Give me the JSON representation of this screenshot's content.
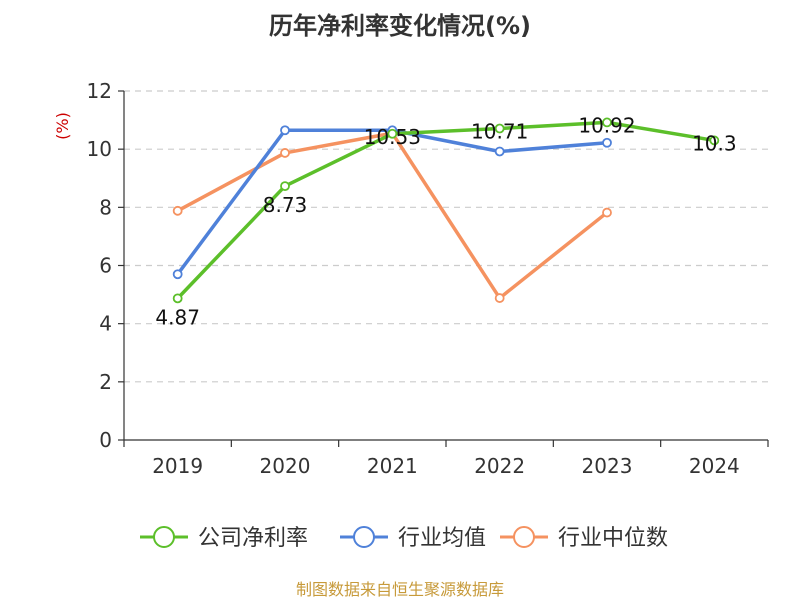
{
  "chart_data": {
    "type": "line",
    "title": "历年净利率变化情况(%)",
    "ylabel": "(%)",
    "xlabel": "",
    "ylim": [
      0,
      12
    ],
    "yticks": [
      0,
      2,
      4,
      6,
      8,
      10,
      12
    ],
    "categories": [
      "2019",
      "2020",
      "2021",
      "2022",
      "2023",
      "2024"
    ],
    "grid": true,
    "legend_position": "bottom",
    "series": [
      {
        "name": "公司净利率",
        "color": "#5cbf2a",
        "values": [
          4.87,
          8.73,
          10.53,
          10.71,
          10.92,
          10.3
        ],
        "labels": [
          "4.87",
          "8.73",
          "10.53",
          "10.71",
          "10.92",
          "10.3"
        ]
      },
      {
        "name": "行业均值",
        "color": "#4f81d9",
        "values": [
          5.7,
          10.65,
          10.65,
          9.92,
          10.22,
          null
        ]
      },
      {
        "name": "行业中位数",
        "color": "#f59260",
        "values": [
          7.88,
          9.87,
          10.55,
          4.88,
          7.82,
          null
        ]
      }
    ]
  },
  "footer": "制图数据来自恒生聚源数据库"
}
